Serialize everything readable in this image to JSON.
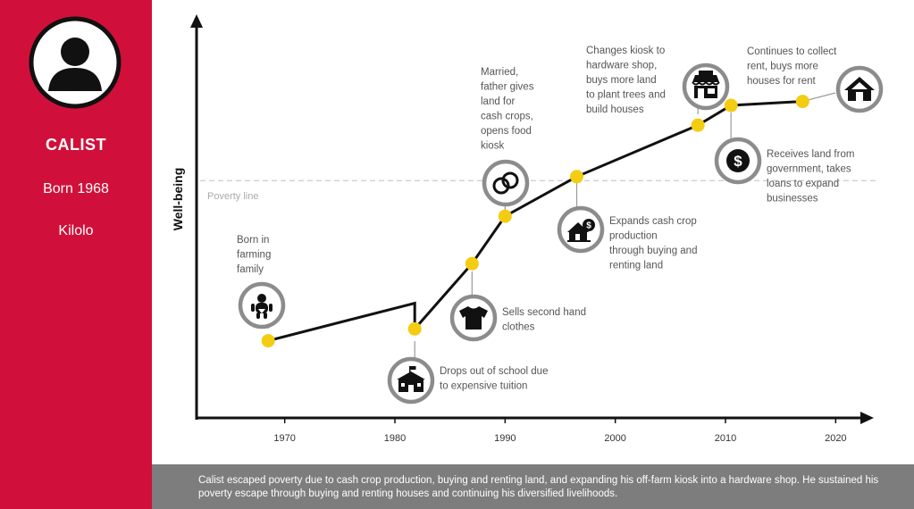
{
  "profile": {
    "name": "CALIST",
    "born": "Born 1968",
    "place": "Kilolo"
  },
  "colors": {
    "sidebar": "#d0103a",
    "marker": "#f4cc12",
    "icon_ring": "#8c8c8c",
    "summary_bg": "#7d7d7d"
  },
  "summary": "Calist escaped poverty due to cash crop production, buying and renting land, and expanding his off-farm kiosk into a hardware shop. He sustained his poverty escape through buying and renting houses and continuing his diversified livelihoods.",
  "chart_data": {
    "type": "line",
    "title": "",
    "xlabel": "",
    "ylabel": "Well-being",
    "xlim": [
      1962,
      2022
    ],
    "ylim": [
      0,
      10
    ],
    "x_ticks": [
      1970,
      1980,
      1990,
      2000,
      2010,
      2020
    ],
    "poverty_line": {
      "label": "Poverty line",
      "value": 6.0
    },
    "series": [
      {
        "name": "Well-being trajectory",
        "points": [
          {
            "x": 1968.5,
            "y": 1.95
          },
          {
            "x": 1981.8,
            "y": 2.9
          },
          {
            "x": 1981.8,
            "y": 2.25
          },
          {
            "x": 1987,
            "y": 3.9
          },
          {
            "x": 1990,
            "y": 5.1
          },
          {
            "x": 1996.5,
            "y": 6.1
          },
          {
            "x": 2007.5,
            "y": 7.4
          },
          {
            "x": 2010.5,
            "y": 7.9
          },
          {
            "x": 2017,
            "y": 8.0
          }
        ]
      }
    ],
    "events": [
      {
        "id": "born",
        "x": 1968.5,
        "y": 1.95,
        "icon": "baby-icon",
        "text": [
          "Born in",
          "farming",
          "family"
        ]
      },
      {
        "id": "school",
        "x": 1981.8,
        "y": 2.25,
        "icon": "school-icon",
        "text": [
          "Drops out of school due",
          "to expensive tuition"
        ]
      },
      {
        "id": "clothes",
        "x": 1987,
        "y": 3.9,
        "icon": "shirt-icon",
        "text": [
          "Sells second hand",
          "clothes"
        ]
      },
      {
        "id": "married",
        "x": 1990,
        "y": 5.1,
        "icon": "rings-icon",
        "text": [
          "Married,",
          "father gives",
          "land for",
          "cash crops,",
          "opens food",
          "kiosk"
        ]
      },
      {
        "id": "cashcrop",
        "x": 1996.5,
        "y": 6.1,
        "icon": "land-money-icon",
        "text": [
          "Expands cash crop",
          "production",
          "through buying and",
          "renting land"
        ]
      },
      {
        "id": "hardware",
        "x": 2007.5,
        "y": 7.4,
        "icon": "shop-icon",
        "text": [
          "Changes kiosk to",
          "hardware shop,",
          "buys more land",
          "to plant trees and",
          "build houses"
        ]
      },
      {
        "id": "government",
        "x": 2010.5,
        "y": 7.9,
        "icon": "dollar-icon",
        "text": [
          "Receives land from",
          "government, takes",
          "loans to expand",
          "businesses"
        ]
      },
      {
        "id": "rent",
        "x": 2017,
        "y": 8.0,
        "icon": "house-icon",
        "text": [
          "Continues to collect",
          "rent, buys more",
          "houses for rent"
        ]
      }
    ]
  }
}
